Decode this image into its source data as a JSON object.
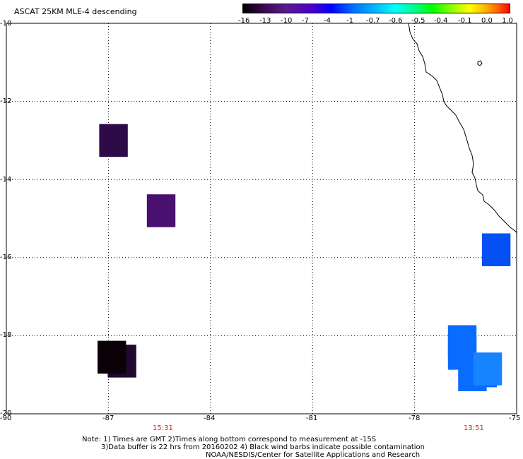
{
  "title": "ASCAT 25KM MLE-4 descending",
  "colorbar": {
    "ticks": [
      "-16",
      "-13",
      "-10",
      "-7",
      "-4",
      "-1",
      "-0.7",
      "-0.6",
      "-0.5",
      "-0.4",
      "-0.1",
      "0.0",
      "1.0"
    ],
    "colors": [
      "#000000",
      "#5a1a8a",
      "#0000ff",
      "#00ffff",
      "#00ff00",
      "#ffff00",
      "#ff0000"
    ]
  },
  "axes": {
    "y_ticks": [
      "-10",
      "-12",
      "-14",
      "-16",
      "-18",
      "-20"
    ],
    "x_ticks": [
      "-90",
      "-87",
      "-84",
      "-81",
      "-78",
      "-75"
    ]
  },
  "times": [
    "15:31",
    "13:51"
  ],
  "notes": {
    "line1": "Note: 1) Times are GMT 2)Times along bottom correspond to measurement at -15S",
    "line2": "3)Data buffer is 22 hrs from 20160202 4) Black wind barbs indicate possible contamination",
    "line3": "NOAA/NESDIS/Center for Satellite Applications and Research"
  },
  "data_cells": [
    {
      "lon": -86.85,
      "lat": -13.0,
      "color": "#2e0b48"
    },
    {
      "lon": -85.45,
      "lat": -14.8,
      "color": "#4a1070"
    },
    {
      "lon": -86.6,
      "lat": -18.65,
      "color": "#22082e"
    },
    {
      "lon": -86.9,
      "lat": -18.55,
      "color": "#0a0206"
    },
    {
      "lon": -75.6,
      "lat": -15.8,
      "color": "#0550f5"
    },
    {
      "lon": -76.6,
      "lat": -18.45,
      "color": "#0a6cff"
    },
    {
      "lon": -76.6,
      "lat": -18.15,
      "color": "#0a6cff"
    },
    {
      "lon": -76.0,
      "lat": -18.9,
      "color": "#0a6cff"
    },
    {
      "lon": -76.3,
      "lat": -19.0,
      "color": "#0a6cff"
    },
    {
      "lon": -75.85,
      "lat": -18.85,
      "color": "#1883ff"
    }
  ]
}
